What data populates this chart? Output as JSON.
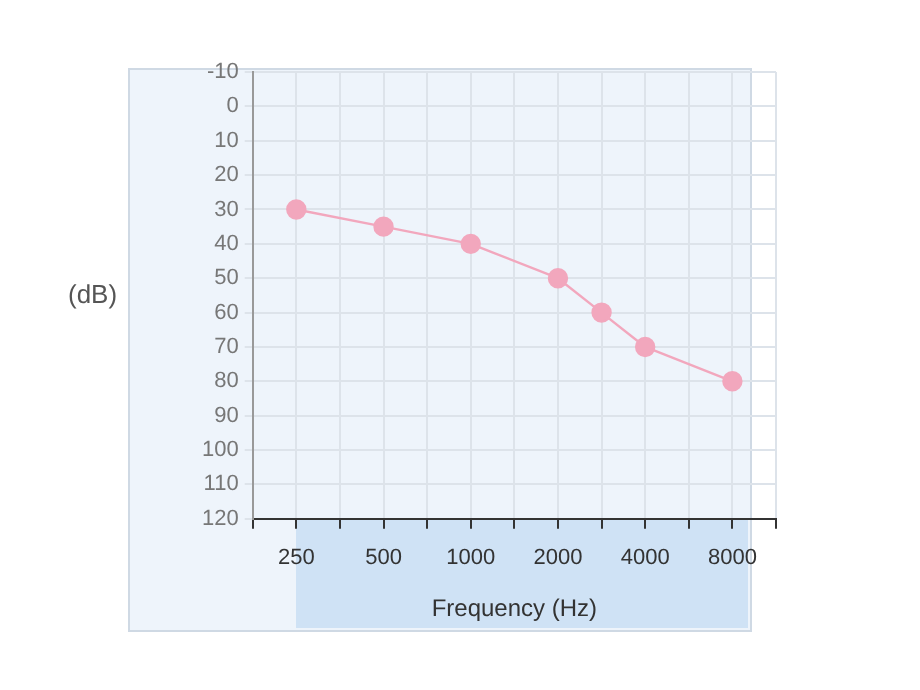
{
  "chart_data": {
    "type": "line",
    "xlabel": "Frequency (Hz)",
    "ylabel": "(dB)",
    "categories": [
      null,
      "250",
      null,
      "500",
      null,
      "1000",
      null,
      "2000",
      null,
      "4000",
      null,
      "8000",
      null
    ],
    "series": [
      {
        "color": "#f2a7bd",
        "values": [
          null,
          30,
          null,
          35,
          null,
          40,
          null,
          50,
          60,
          70,
          null,
          80,
          null
        ]
      }
    ],
    "ylim": [
      120,
      -10
    ],
    "yticks": [
      -10,
      0,
      10,
      20,
      30,
      40,
      50,
      60,
      70,
      80,
      90,
      100,
      110,
      120
    ],
    "grid": true,
    "marker": "circle",
    "line_style": "solid"
  }
}
